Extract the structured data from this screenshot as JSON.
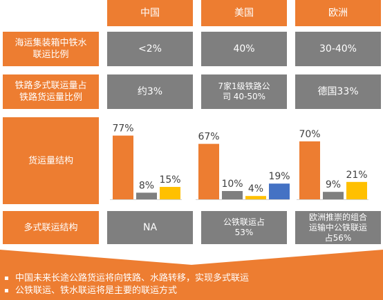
{
  "columns": [
    "中国",
    "美国",
    "欧洲"
  ],
  "rows": [
    {
      "label": "海运集装箱中铁水\n联运比例",
      "values": [
        "<2%",
        "40%",
        "30-40%"
      ]
    },
    {
      "label": "铁路多式联运量占\n铁路货运量比例",
      "values": [
        "约3%",
        "7家1级铁路公\n司 40-50%",
        "德国33%"
      ]
    },
    {
      "label": "货运量结构"
    },
    {
      "label": "多式联运结构",
      "values": [
        "NA",
        "公铁联运占\n53%",
        "欧洲推崇的组合\n运输中公铁联运\n占56%"
      ]
    }
  ],
  "chart_data": [
    {
      "type": "bar",
      "group": "中国",
      "values": [
        77,
        8,
        15
      ],
      "labels": [
        "77%",
        "8%",
        "15%"
      ],
      "colors": [
        "#ed7d31",
        "#7f7f7f",
        "#ffc000"
      ],
      "ylim": [
        0,
        80
      ]
    },
    {
      "type": "bar",
      "group": "美国",
      "values": [
        67,
        10,
        4,
        19
      ],
      "labels": [
        "67%",
        "10%",
        "4%",
        "19%"
      ],
      "colors": [
        "#ed7d31",
        "#7f7f7f",
        "#ffc000",
        "#4472c4"
      ],
      "ylim": [
        0,
        80
      ]
    },
    {
      "type": "bar",
      "group": "欧洲",
      "values": [
        70,
        9,
        21
      ],
      "labels": [
        "70%",
        "9%",
        "21%"
      ],
      "colors": [
        "#ed7d31",
        "#7f7f7f",
        "#ffc000"
      ],
      "ylim": [
        0,
        80
      ]
    }
  ],
  "footer": {
    "bullet": "▪",
    "lines": [
      "中国未来长途公路货运将向铁路、水路转移，实现多式联运",
      "公铁联运、铁水联运将是主要的联运方式"
    ]
  },
  "colors": {
    "orange": "#ed7d31",
    "gray": "#7f7f7f",
    "yellow": "#ffc000",
    "blue": "#4472c4"
  }
}
